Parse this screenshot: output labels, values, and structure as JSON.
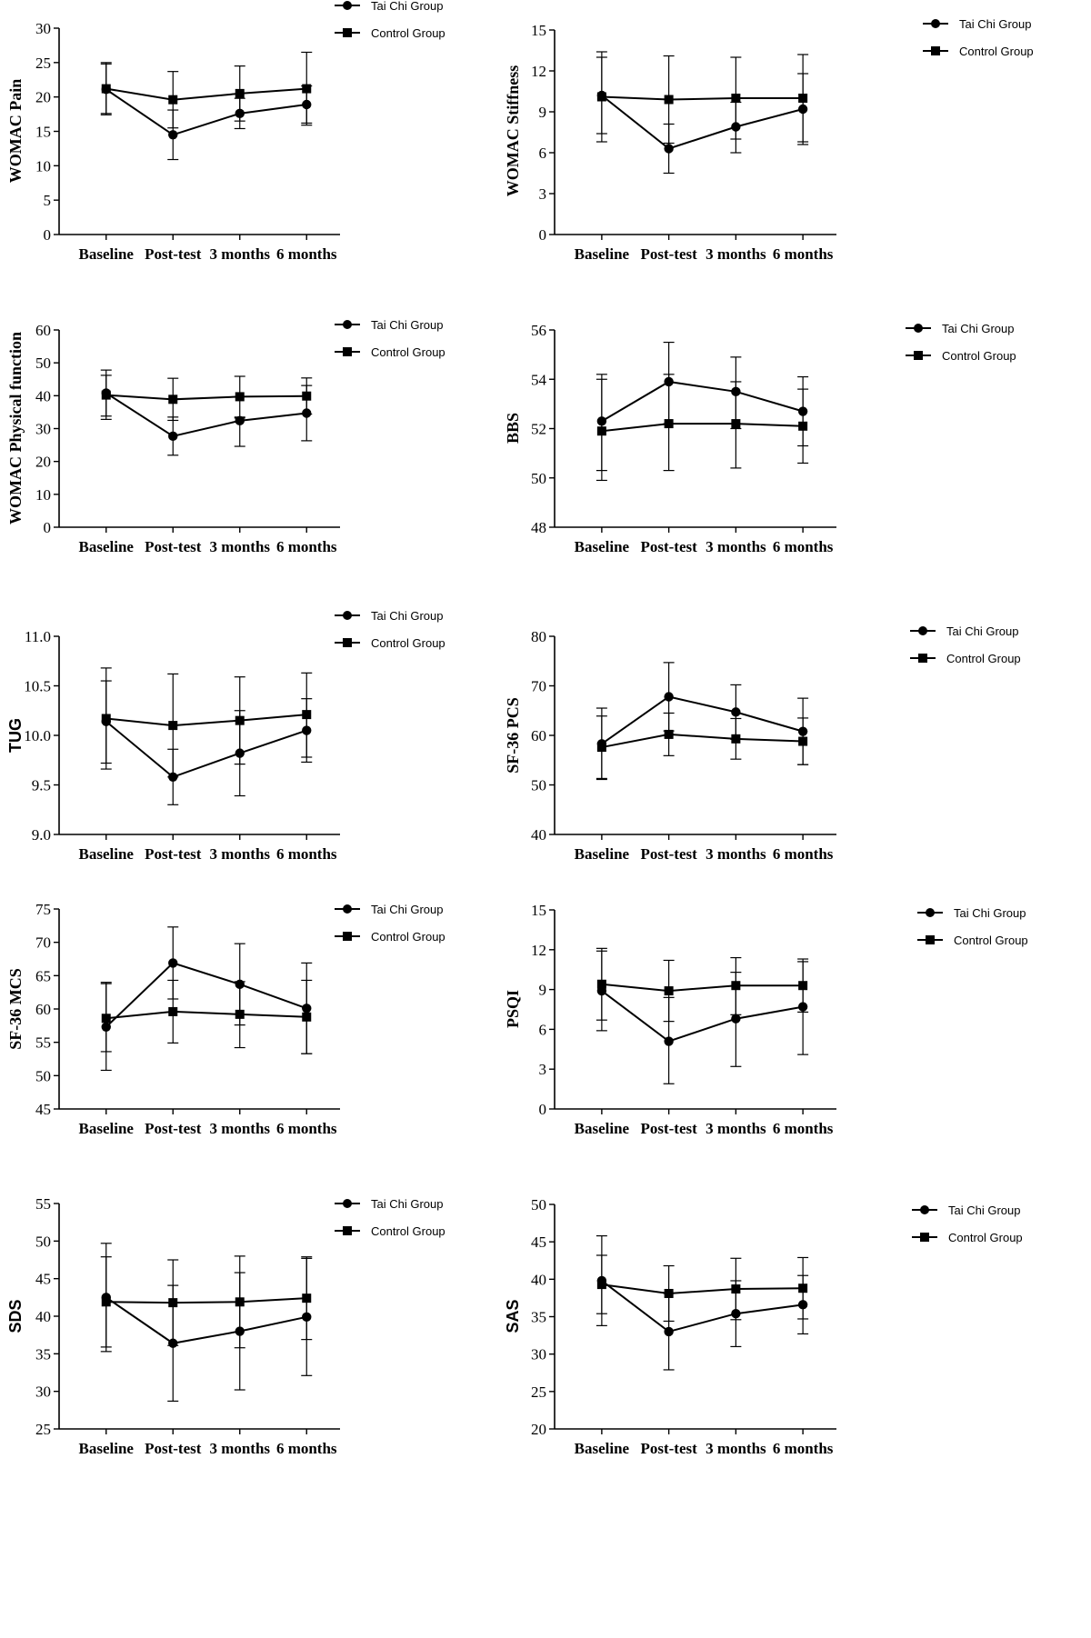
{
  "legend_labels": {
    "taichi": "Tai Chi Group",
    "control": "Control Group"
  },
  "chart_data": [
    {
      "type": "line",
      "ylabel": "WOMAC  Pain",
      "ylabel_font": "serif",
      "categories": [
        "Baseline",
        "Post-test",
        "3 months",
        "6 months"
      ],
      "ylim": [
        0,
        30
      ],
      "yticks": [
        "0",
        "5",
        "10",
        "15",
        "20",
        "25",
        "30"
      ],
      "series": [
        {
          "name": "Tai Chi Group",
          "marker": "circle",
          "values": [
            21.1,
            14.5,
            17.6,
            18.9
          ],
          "upper": [
            24.8,
            18.1,
            19.8,
            21.6
          ],
          "lower": [
            17.4,
            10.9,
            15.4,
            16.2
          ]
        },
        {
          "name": "Control Group",
          "marker": "square",
          "values": [
            21.2,
            19.6,
            20.5,
            21.2
          ],
          "upper": [
            25.0,
            23.7,
            24.5,
            26.5
          ],
          "lower": [
            17.6,
            15.5,
            16.5,
            15.9
          ]
        }
      ]
    },
    {
      "type": "line",
      "ylabel": "WOMAC  Stiffness",
      "ylabel_font": "serif",
      "categories": [
        "Baseline",
        "Post-test",
        "3 months",
        "6 months"
      ],
      "ylim": [
        0,
        15
      ],
      "yticks": [
        "0",
        "3",
        "6",
        "9",
        "12",
        "15"
      ],
      "series": [
        {
          "name": "Tai Chi Group",
          "marker": "circle",
          "values": [
            10.2,
            6.3,
            7.9,
            9.2
          ],
          "upper": [
            13.0,
            8.1,
            9.7,
            11.8
          ],
          "lower": [
            7.4,
            4.5,
            6.0,
            6.6
          ]
        },
        {
          "name": "Control Group",
          "marker": "square",
          "values": [
            10.1,
            9.9,
            10.0,
            10.0
          ],
          "upper": [
            13.4,
            13.1,
            13.0,
            13.2
          ],
          "lower": [
            6.8,
            6.7,
            7.0,
            6.8
          ]
        }
      ]
    },
    {
      "type": "line",
      "ylabel": "WOMAC  Physical function",
      "ylabel_font": "serif",
      "categories": [
        "Baseline",
        "Post-test",
        "3 months",
        "6 months"
      ],
      "ylim": [
        0,
        60
      ],
      "yticks": [
        "0",
        "10",
        "20",
        "30",
        "40",
        "50",
        "60"
      ],
      "series": [
        {
          "name": "Tai Chi Group",
          "marker": "circle",
          "values": [
            40.8,
            27.7,
            32.4,
            34.7
          ],
          "upper": [
            47.8,
            33.5,
            33.2,
            43.1
          ],
          "lower": [
            33.8,
            21.9,
            24.6,
            26.3
          ]
        },
        {
          "name": "Control Group",
          "marker": "square",
          "values": [
            40.2,
            38.9,
            39.7,
            39.9
          ],
          "upper": [
            46.2,
            45.3,
            45.9,
            45.4
          ],
          "lower": [
            32.8,
            32.5,
            33.5,
            34.4
          ]
        }
      ]
    },
    {
      "type": "line",
      "ylabel": "BBS",
      "ylabel_font": "serif",
      "categories": [
        "Baseline",
        "Post-test",
        "3 months",
        "6 months"
      ],
      "ylim": [
        48,
        56
      ],
      "yticks": [
        "48",
        "50",
        "52",
        "54",
        "56"
      ],
      "series": [
        {
          "name": "Tai Chi Group",
          "marker": "circle",
          "values": [
            52.3,
            53.9,
            53.5,
            52.7
          ],
          "upper": [
            54.2,
            55.5,
            54.9,
            54.1
          ],
          "lower": [
            50.3,
            52.2,
            52.0,
            51.3
          ]
        },
        {
          "name": "Control Group",
          "marker": "square",
          "values": [
            51.9,
            52.2,
            52.2,
            52.1
          ],
          "upper": [
            54.0,
            54.2,
            53.9,
            53.6
          ],
          "lower": [
            49.9,
            50.3,
            50.4,
            50.6
          ]
        }
      ]
    },
    {
      "type": "line",
      "ylabel": "TUG",
      "ylabel_font": "sans",
      "categories": [
        "Baseline",
        "Post-test",
        "3 months",
        "6 months"
      ],
      "ylim": [
        9.0,
        11.0
      ],
      "yticks": [
        "9.0",
        "9.5",
        "10.0",
        "10.5",
        "11.0"
      ],
      "series": [
        {
          "name": "Tai Chi Group",
          "marker": "circle",
          "values": [
            10.14,
            9.58,
            9.82,
            10.05
          ],
          "upper": [
            10.55,
            9.86,
            10.25,
            10.37
          ],
          "lower": [
            9.72,
            9.3,
            9.39,
            9.73
          ]
        },
        {
          "name": "Control Group",
          "marker": "square",
          "values": [
            10.17,
            10.1,
            10.15,
            10.21
          ],
          "upper": [
            10.68,
            10.62,
            10.59,
            10.63
          ],
          "lower": [
            9.66,
            9.58,
            9.71,
            9.78
          ]
        }
      ]
    },
    {
      "type": "line",
      "ylabel": "SF-36 PCS",
      "ylabel_font": "serif",
      "categories": [
        "Baseline",
        "Post-test",
        "3 months",
        "6 months"
      ],
      "ylim": [
        40,
        80
      ],
      "yticks": [
        "40",
        "50",
        "60",
        "70",
        "80"
      ],
      "series": [
        {
          "name": "Tai Chi Group",
          "marker": "circle",
          "values": [
            58.3,
            67.8,
            64.7,
            60.8
          ],
          "upper": [
            65.5,
            74.7,
            70.2,
            67.5
          ],
          "lower": [
            51.1,
            60.9,
            59.2,
            54.1
          ]
        },
        {
          "name": "Control Group",
          "marker": "square",
          "values": [
            57.6,
            60.2,
            59.3,
            58.8
          ],
          "upper": [
            63.9,
            64.5,
            63.4,
            63.5
          ],
          "lower": [
            51.3,
            55.9,
            55.2,
            54.1
          ]
        }
      ]
    },
    {
      "type": "line",
      "ylabel": "SF-36 MCS",
      "ylabel_font": "serif",
      "categories": [
        "Baseline",
        "Post-test",
        "3 months",
        "6 months"
      ],
      "ylim": [
        45,
        75
      ],
      "yticks": [
        "45",
        "50",
        "55",
        "60",
        "65",
        "70",
        "75"
      ],
      "series": [
        {
          "name": "Tai Chi Group",
          "marker": "circle",
          "values": [
            57.3,
            66.9,
            63.7,
            60.1
          ],
          "upper": [
            63.8,
            72.3,
            69.8,
            66.9
          ],
          "lower": [
            50.8,
            61.5,
            57.6,
            53.3
          ]
        },
        {
          "name": "Control Group",
          "marker": "square",
          "values": [
            58.6,
            59.6,
            59.2,
            58.8
          ],
          "upper": [
            64.0,
            64.3,
            64.1,
            64.3
          ],
          "lower": [
            53.6,
            54.9,
            54.2,
            53.3
          ]
        }
      ]
    },
    {
      "type": "line",
      "ylabel": "PSQI",
      "ylabel_font": "serif",
      "categories": [
        "Baseline",
        "Post-test",
        "3 months",
        "6 months"
      ],
      "ylim": [
        0,
        15
      ],
      "yticks": [
        "0",
        "3",
        "6",
        "9",
        "12",
        "15"
      ],
      "series": [
        {
          "name": "Tai Chi Group",
          "marker": "circle",
          "values": [
            8.9,
            5.1,
            6.8,
            7.7
          ],
          "upper": [
            11.9,
            8.4,
            10.3,
            11.1
          ],
          "lower": [
            5.9,
            1.9,
            3.2,
            4.1
          ]
        },
        {
          "name": "Control Group",
          "marker": "square",
          "values": [
            9.4,
            8.9,
            9.3,
            9.3
          ],
          "upper": [
            12.1,
            11.2,
            11.4,
            11.3
          ],
          "lower": [
            6.7,
            6.6,
            7.1,
            7.3
          ]
        }
      ]
    },
    {
      "type": "line",
      "ylabel": "SDS",
      "ylabel_font": "sans",
      "categories": [
        "Baseline",
        "Post-test",
        "3 months",
        "6 months"
      ],
      "ylim": [
        25,
        55
      ],
      "yticks": [
        "25",
        "30",
        "35",
        "40",
        "45",
        "50",
        "55"
      ],
      "series": [
        {
          "name": "Tai Chi Group",
          "marker": "circle",
          "values": [
            42.5,
            36.4,
            38.0,
            39.9
          ],
          "upper": [
            49.7,
            44.1,
            45.8,
            47.7
          ],
          "lower": [
            35.3,
            28.7,
            30.2,
            32.1
          ]
        },
        {
          "name": "Control Group",
          "marker": "square",
          "values": [
            41.9,
            41.8,
            41.9,
            42.4
          ],
          "upper": [
            47.9,
            47.5,
            48.0,
            47.9
          ],
          "lower": [
            35.9,
            36.1,
            35.8,
            36.9
          ]
        }
      ]
    },
    {
      "type": "line",
      "ylabel": "SAS",
      "ylabel_font": "sans",
      "categories": [
        "Baseline",
        "Post-test",
        "3 months",
        "6 months"
      ],
      "ylim": [
        20,
        50
      ],
      "yticks": [
        "20",
        "25",
        "30",
        "35",
        "40",
        "45",
        "50"
      ],
      "series": [
        {
          "name": "Tai Chi Group",
          "marker": "circle",
          "values": [
            39.8,
            33.0,
            35.4,
            36.6
          ],
          "upper": [
            45.8,
            38.1,
            39.8,
            40.5
          ],
          "lower": [
            33.8,
            27.9,
            31.0,
            32.7
          ]
        },
        {
          "name": "Control Group",
          "marker": "square",
          "values": [
            39.3,
            38.1,
            38.7,
            38.8
          ],
          "upper": [
            43.2,
            41.8,
            42.8,
            42.9
          ],
          "lower": [
            35.4,
            34.4,
            34.6,
            34.7
          ]
        }
      ]
    }
  ]
}
